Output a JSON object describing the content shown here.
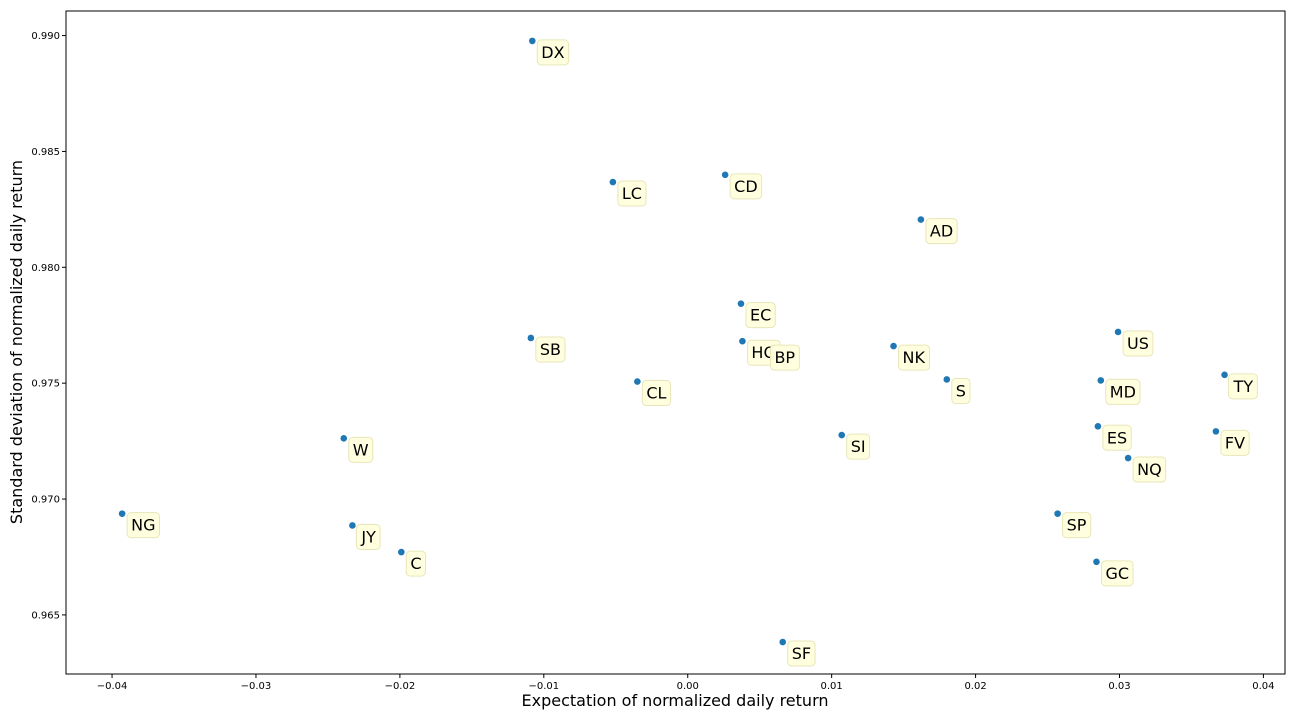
{
  "chart_data": {
    "type": "scatter",
    "title": "",
    "xlabel": "Expectation of normalized daily return",
    "ylabel": "Standard deviation of normalized daily return",
    "xlim": [
      -0.0432,
      0.0415
    ],
    "ylim": [
      0.96245,
      0.99106
    ],
    "xticks": [
      {
        "value": -0.04,
        "label": "−0.04"
      },
      {
        "value": -0.03,
        "label": "−0.03"
      },
      {
        "value": -0.02,
        "label": "−0.02"
      },
      {
        "value": -0.01,
        "label": "−0.01"
      },
      {
        "value": 0.0,
        "label": "0.00"
      },
      {
        "value": 0.01,
        "label": "0.01"
      },
      {
        "value": 0.02,
        "label": "0.02"
      },
      {
        "value": 0.03,
        "label": "0.03"
      },
      {
        "value": 0.04,
        "label": "0.04"
      }
    ],
    "yticks": [
      {
        "value": 0.965,
        "label": "0.965"
      },
      {
        "value": 0.97,
        "label": "0.970"
      },
      {
        "value": 0.975,
        "label": "0.975"
      },
      {
        "value": 0.98,
        "label": "0.980"
      },
      {
        "value": 0.985,
        "label": "0.985"
      },
      {
        "value": 0.99,
        "label": "0.990"
      }
    ],
    "grid": false,
    "marker_color": "#1f77b4",
    "label_box_fill": "#ffffe0",
    "label_box_stroke": "#e8e6b8",
    "points": [
      {
        "label": "DX",
        "x": -0.0108,
        "y": 0.98977
      },
      {
        "label": "LC",
        "x": -0.0052,
        "y": 0.98368
      },
      {
        "label": "CD",
        "x": 0.0026,
        "y": 0.98399
      },
      {
        "label": "AD",
        "x": 0.0162,
        "y": 0.98206
      },
      {
        "label": "EC",
        "x": 0.0037,
        "y": 0.97843
      },
      {
        "label": "SB",
        "x": -0.0109,
        "y": 0.97695
      },
      {
        "label": "HO",
        "x": 0.0038,
        "y": 0.97681
      },
      {
        "label": "BP",
        "x": 0.0054,
        "y": 0.9766
      },
      {
        "label": "NK",
        "x": 0.0143,
        "y": 0.9766
      },
      {
        "label": "US",
        "x": 0.0299,
        "y": 0.97721
      },
      {
        "label": "CL",
        "x": -0.0035,
        "y": 0.97507
      },
      {
        "label": "S",
        "x": 0.018,
        "y": 0.97516
      },
      {
        "label": "MD",
        "x": 0.0287,
        "y": 0.97512
      },
      {
        "label": "TY",
        "x": 0.0373,
        "y": 0.97536
      },
      {
        "label": "W",
        "x": -0.0239,
        "y": 0.97262
      },
      {
        "label": "SI",
        "x": 0.0107,
        "y": 0.97276
      },
      {
        "label": "ES",
        "x": 0.0285,
        "y": 0.97314
      },
      {
        "label": "FV",
        "x": 0.0367,
        "y": 0.97292
      },
      {
        "label": "NQ",
        "x": 0.0306,
        "y": 0.97177
      },
      {
        "label": "NG",
        "x": -0.0393,
        "y": 0.96937
      },
      {
        "label": "JY",
        "x": -0.0233,
        "y": 0.96886
      },
      {
        "label": "C",
        "x": -0.0199,
        "y": 0.96771
      },
      {
        "label": "SP",
        "x": 0.0257,
        "y": 0.96937
      },
      {
        "label": "GC",
        "x": 0.0284,
        "y": 0.96729
      },
      {
        "label": "SF",
        "x": 0.0066,
        "y": 0.96383
      }
    ]
  }
}
